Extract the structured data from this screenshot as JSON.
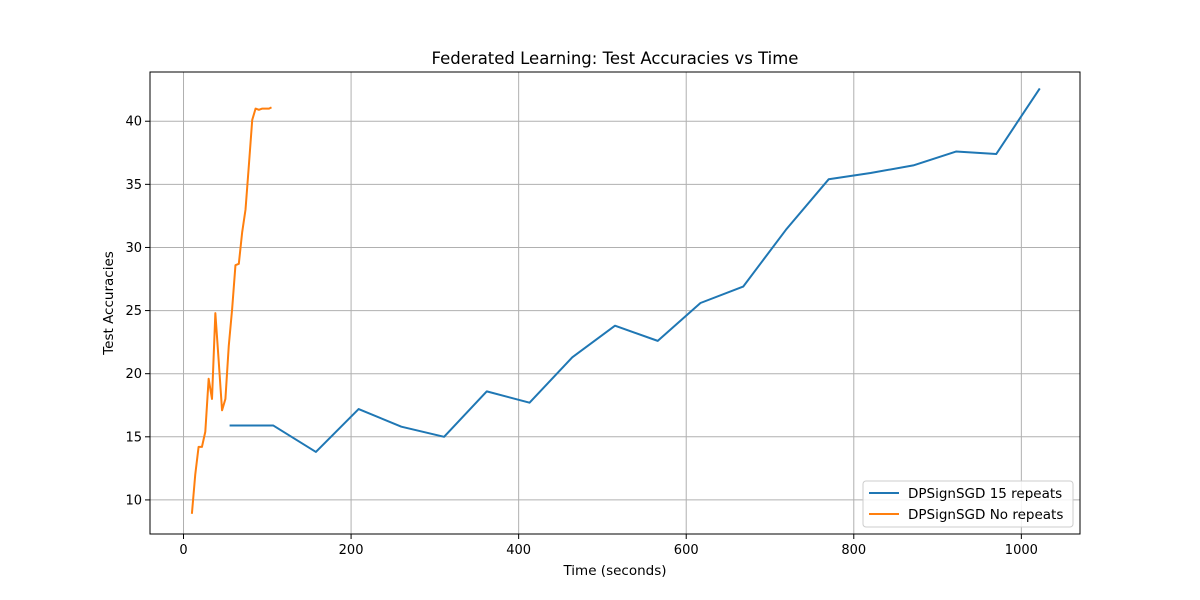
{
  "chart_data": {
    "type": "line",
    "title": "Federated Learning: Test Accuracies vs Time",
    "xlabel": "Time (seconds)",
    "ylabel": "Test Accuracies",
    "xlim": [
      -40,
      1070
    ],
    "ylim": [
      7.3,
      43.9
    ],
    "xticks": [
      0,
      200,
      400,
      600,
      800,
      1000
    ],
    "yticks": [
      10,
      15,
      20,
      25,
      30,
      35,
      40
    ],
    "grid": true,
    "legend_position": "lower-right",
    "series": [
      {
        "name": "DPSignSGD 15 repeats",
        "color": "#1f77b4",
        "x": [
          55,
          107,
          158,
          209,
          260,
          311,
          362,
          413,
          464,
          515,
          566,
          617,
          668,
          719,
          770,
          820,
          871,
          922,
          970,
          1022
        ],
        "y": [
          15.9,
          15.9,
          13.8,
          17.2,
          15.8,
          15.0,
          18.6,
          17.7,
          21.3,
          23.8,
          22.6,
          25.6,
          26.9,
          31.4,
          35.4,
          35.9,
          36.5,
          37.6,
          37.4,
          42.6
        ]
      },
      {
        "name": "DPSignSGD No repeats",
        "color": "#ff7f0e",
        "x": [
          10,
          14,
          18,
          22,
          26,
          30,
          34,
          38,
          42,
          46,
          50,
          54,
          58,
          62,
          66,
          70,
          74,
          78,
          82,
          86,
          90,
          94,
          98,
          102,
          105
        ],
        "y": [
          8.9,
          12.0,
          14.2,
          14.2,
          15.4,
          19.6,
          18.0,
          24.8,
          21.0,
          17.1,
          18.0,
          22.2,
          25.1,
          28.6,
          28.7,
          31.2,
          33.0,
          36.5,
          40.1,
          41.0,
          40.9,
          41.0,
          41.0,
          41.0,
          41.1
        ]
      }
    ]
  }
}
